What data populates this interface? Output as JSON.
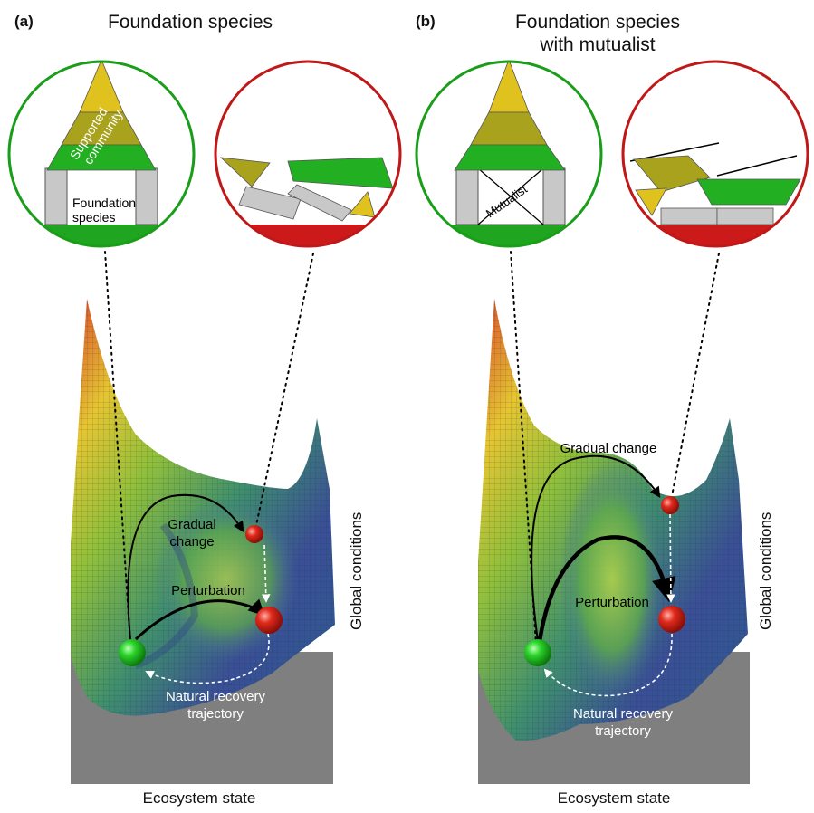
{
  "panel_a": {
    "letter": "(a)",
    "title": "Foundation species",
    "healthy_inset": {
      "pyramid_label_line1": "Supported",
      "pyramid_label_line2": "community",
      "base_label_line1": "Foundation",
      "base_label_line2": "species"
    },
    "labels": {
      "gradual_change_line1": "Gradual",
      "gradual_change_line2": "change",
      "perturbation": "Perturbation",
      "recovery_line1": "Natural recovery",
      "recovery_line2": "trajectory"
    },
    "xlabel": "Ecosystem state",
    "ylabel": "Global conditions"
  },
  "panel_b": {
    "letter": "(b)",
    "title_line1": "Foundation species",
    "title_line2": "with mutualist",
    "healthy_inset": {
      "mutualist_label": "Mutualist"
    },
    "labels": {
      "gradual_change": "Gradual change",
      "perturbation": "Perturbation",
      "recovery_line1": "Natural recovery",
      "recovery_line2": "trajectory"
    },
    "xlabel": "Ecosystem state",
    "ylabel": "Global conditions"
  },
  "colors": {
    "healthy_ring": "#1a9e1a",
    "collapsed_ring": "#c01818",
    "pyramid_top": "#e0c21e",
    "pyramid_mid": "#a8a21c",
    "pyramid_base": "#22b022",
    "column_gray": "#c8c8c8",
    "ground_gray": "#808080"
  }
}
